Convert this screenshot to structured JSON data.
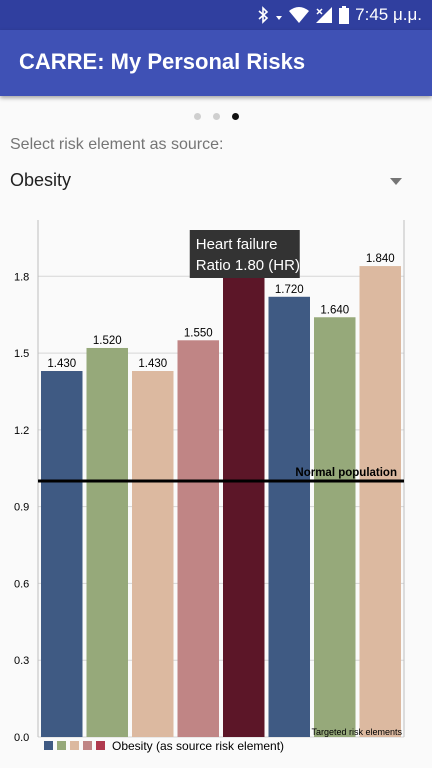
{
  "status_bar": {
    "time": "7:45 μ.μ.",
    "icons": [
      "bluetooth-icon",
      "wifi-icon",
      "signal-icon",
      "battery-icon"
    ]
  },
  "app_bar": {
    "title": "CARRE: My Personal Risks"
  },
  "pager": {
    "count": 3,
    "active_index": 2
  },
  "source_select": {
    "label": "Select risk element as source:",
    "selected": "Obesity"
  },
  "tooltip": {
    "line1": "Heart failure",
    "line2": "Ratio 1.80 (HR)"
  },
  "chart_data": {
    "type": "bar",
    "values": [
      1.43,
      1.52,
      1.43,
      1.55,
      1.8,
      1.72,
      1.64,
      1.84
    ],
    "value_labels": [
      "1.430",
      "1.520",
      "1.430",
      "1.550",
      "",
      "1.720",
      "1.640",
      "1.840"
    ],
    "colors": [
      "#3f5a83",
      "#96a97a",
      "#dcb9a0",
      "#c08585",
      "#5c1628",
      "#3f5a83",
      "#96a97a",
      "#dcb9a0"
    ],
    "yticks": [
      "0.0",
      "0.3",
      "0.6",
      "0.9",
      "1.2",
      "1.5",
      "1.8"
    ],
    "ylim": [
      0,
      2.02
    ],
    "highlighted_index": 4,
    "reference_line": {
      "value": 1.0,
      "label": "Normal population"
    },
    "xlabel": "Targeted risk elements",
    "legend": {
      "label": "Obesity (as source risk element)",
      "colors": [
        "#3f5a83",
        "#96a97a",
        "#dcb9a0",
        "#c08585",
        "#b03a4e"
      ]
    },
    "grid": true
  }
}
